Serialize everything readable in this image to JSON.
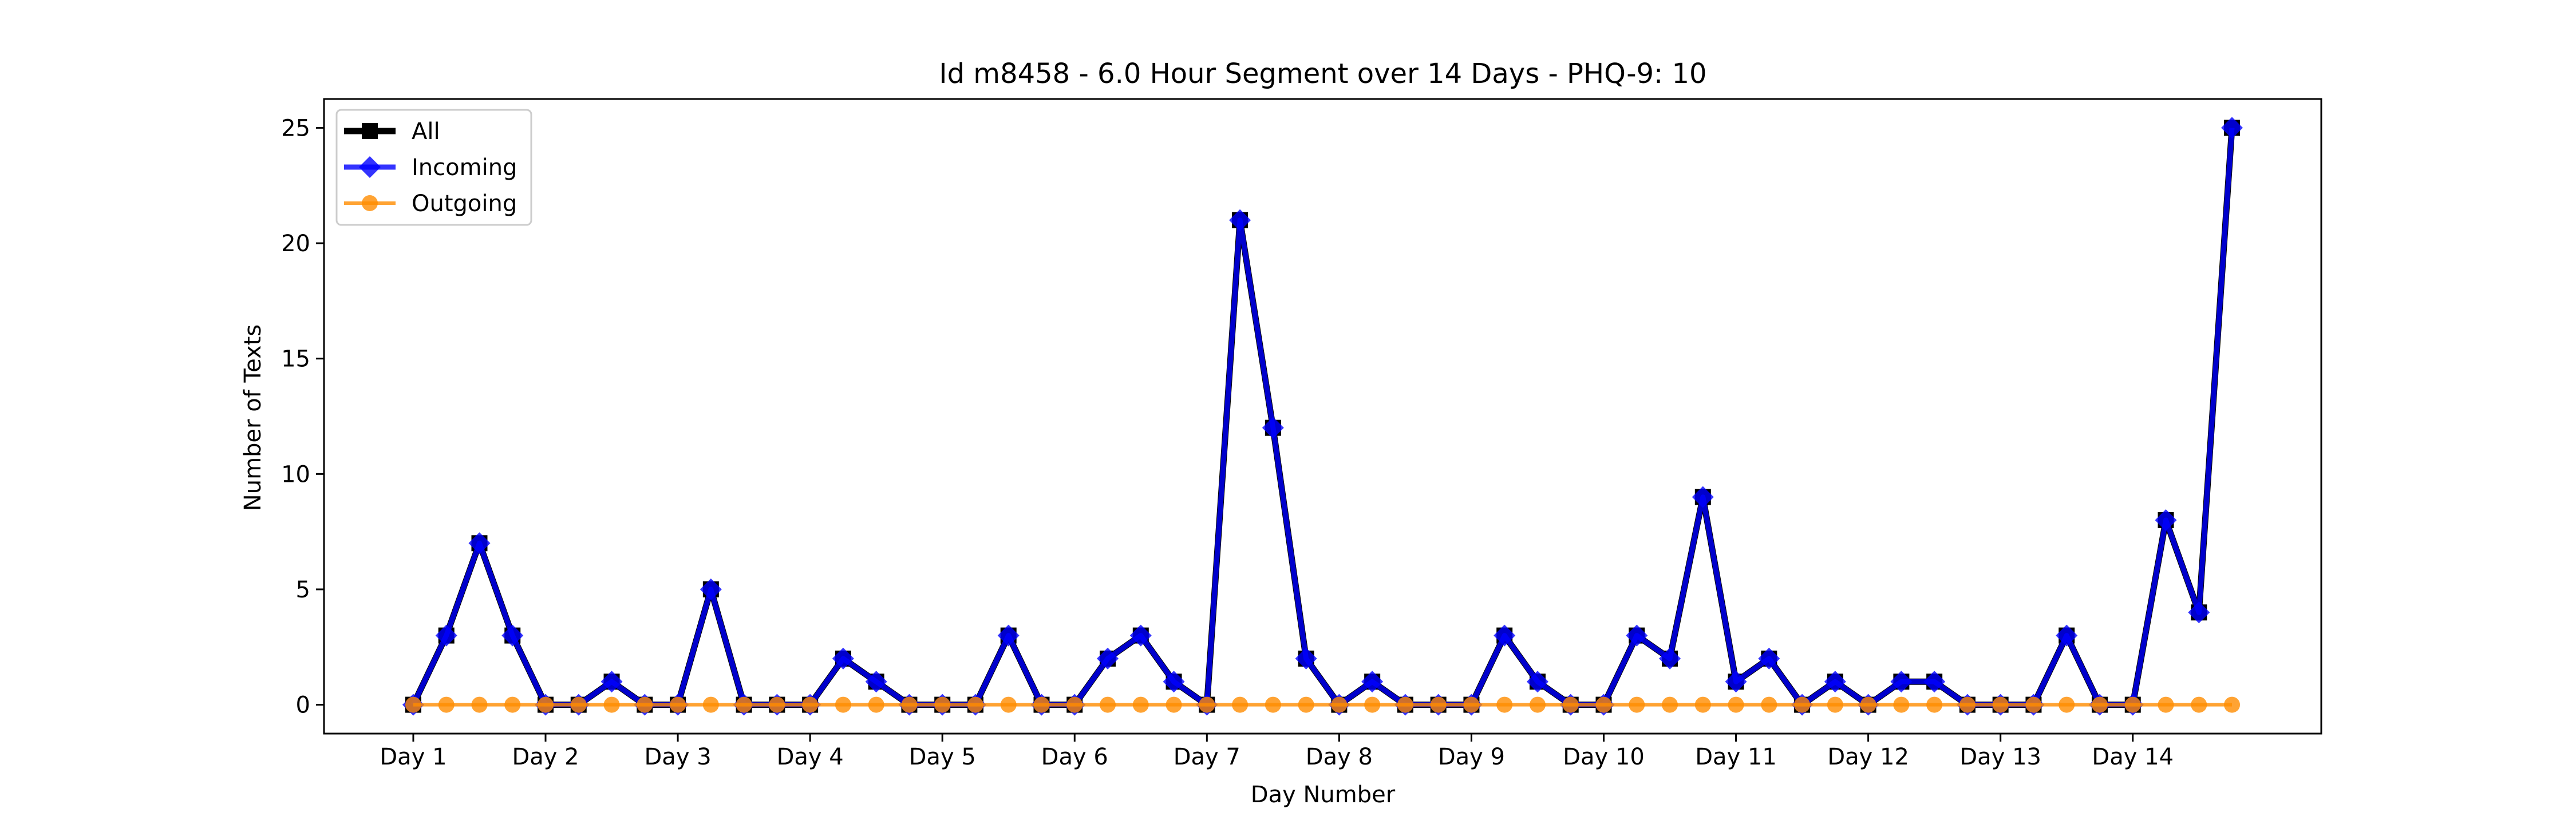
{
  "chart_data": {
    "type": "line",
    "title": "Id m8458 - 6.0 Hour Segment over 14 Days - PHQ-9: 10",
    "xlabel": "Day Number",
    "ylabel": "Number of Texts",
    "x_tick_labels": [
      "Day 1",
      "Day 2",
      "Day 3",
      "Day 4",
      "Day 5",
      "Day 6",
      "Day 7",
      "Day 8",
      "Day 9",
      "Day 10",
      "Day 11",
      "Day 12",
      "Day 13",
      "Day 14"
    ],
    "y_ticks": [
      0,
      5,
      10,
      15,
      20,
      25
    ],
    "ylim": [
      -1.25,
      26.25
    ],
    "xlim": [
      -2.7,
      57.7
    ],
    "legend_position": "upper-left",
    "grid": false,
    "series": [
      {
        "name": "All",
        "color": "#000000",
        "marker": "square",
        "values": [
          0,
          3,
          7,
          3,
          0,
          0,
          1,
          0,
          0,
          5,
          0,
          0,
          0,
          2,
          1,
          0,
          0,
          0,
          3,
          0,
          0,
          2,
          3,
          1,
          0,
          21,
          12,
          2,
          0,
          1,
          0,
          0,
          0,
          3,
          1,
          0,
          0,
          3,
          2,
          9,
          1,
          2,
          0,
          1,
          0,
          1,
          1,
          0,
          0,
          0,
          3,
          0,
          0,
          8,
          4,
          25
        ]
      },
      {
        "name": "Incoming",
        "color": "#0000ff",
        "marker": "diamond",
        "values": [
          0,
          3,
          7,
          3,
          0,
          0,
          1,
          0,
          0,
          5,
          0,
          0,
          0,
          2,
          1,
          0,
          0,
          0,
          3,
          0,
          0,
          2,
          3,
          1,
          0,
          21,
          12,
          2,
          0,
          1,
          0,
          0,
          0,
          3,
          1,
          0,
          0,
          3,
          2,
          9,
          1,
          2,
          0,
          1,
          0,
          1,
          1,
          0,
          0,
          0,
          3,
          0,
          0,
          8,
          4,
          25
        ]
      },
      {
        "name": "Outgoing",
        "color": "#ff8c00",
        "marker": "circle",
        "values": [
          0,
          0,
          0,
          0,
          0,
          0,
          0,
          0,
          0,
          0,
          0,
          0,
          0,
          0,
          0,
          0,
          0,
          0,
          0,
          0,
          0,
          0,
          0,
          0,
          0,
          0,
          0,
          0,
          0,
          0,
          0,
          0,
          0,
          0,
          0,
          0,
          0,
          0,
          0,
          0,
          0,
          0,
          0,
          0,
          0,
          0,
          0,
          0,
          0,
          0,
          0,
          0,
          0,
          0,
          0,
          0
        ]
      }
    ]
  }
}
